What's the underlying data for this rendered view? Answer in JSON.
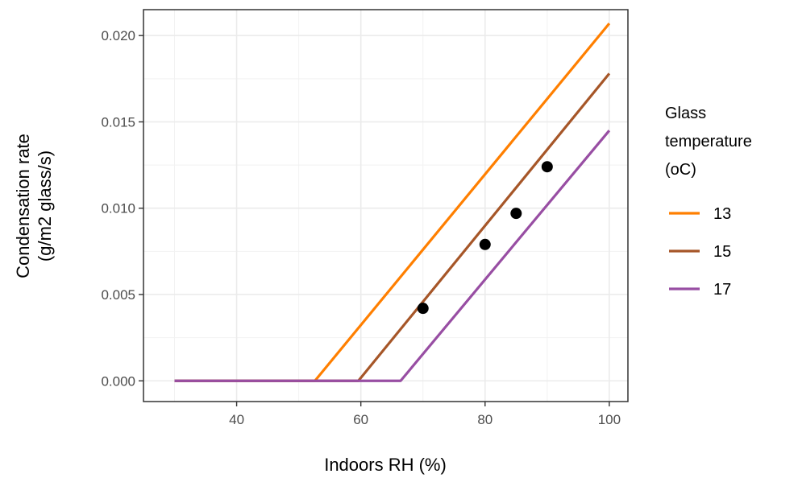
{
  "chart_data": {
    "type": "line",
    "xlabel": "Indoors RH (%)",
    "ylabel_lines": [
      "Condensation rate",
      "(g/m2 glass/s)"
    ],
    "xlim": [
      25,
      103
    ],
    "ylim": [
      -0.0012,
      0.0215
    ],
    "x_ticks": [
      40,
      60,
      80,
      100
    ],
    "x_tick_labels": [
      "40",
      "60",
      "80",
      "100"
    ],
    "y_ticks": [
      0,
      0.005,
      0.01,
      0.015,
      0.02
    ],
    "y_tick_labels": [
      "0.000",
      "0.005",
      "0.010",
      "0.015",
      "0.020"
    ],
    "x_minor": [
      30,
      50,
      70,
      90
    ],
    "y_minor": [
      0.0025,
      0.0075,
      0.0125,
      0.0175
    ],
    "grid": true,
    "legend": {
      "title_lines": [
        "Glass",
        "temperature",
        "(oC)"
      ],
      "placement": "right"
    },
    "series": [
      {
        "name": "13",
        "color": "#ff7f00",
        "x": [
          30,
          52.6,
          100
        ],
        "y": [
          0,
          0,
          0.0207
        ]
      },
      {
        "name": "15",
        "color": "#a65628",
        "x": [
          30,
          59.6,
          100
        ],
        "y": [
          0,
          0,
          0.0178
        ]
      },
      {
        "name": "17",
        "color": "#984ea3",
        "x": [
          30,
          66.4,
          100
        ],
        "y": [
          0,
          0,
          0.0145
        ]
      }
    ],
    "points": {
      "color": "#000000",
      "x": [
        70,
        80,
        85,
        90
      ],
      "y": [
        0.0042,
        0.0079,
        0.0097,
        0.0124
      ]
    }
  }
}
